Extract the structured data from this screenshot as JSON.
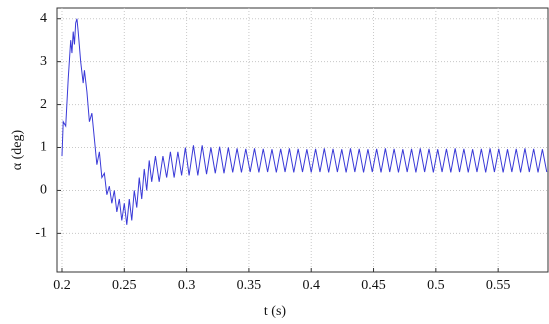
{
  "chart_data": {
    "type": "line",
    "xlabel": "t (s)",
    "ylabel": "α (deg)",
    "color": "#3a3ad8",
    "grid": true,
    "xlim": [
      0.196,
      0.59
    ],
    "ylim": [
      -1.9,
      4.25
    ],
    "xticks": [
      0.2,
      0.25,
      0.3,
      0.35,
      0.4,
      0.45,
      0.5,
      0.55
    ],
    "yticks": [
      -1,
      0,
      1,
      2,
      3,
      4
    ],
    "x": [
      0.2,
      0.201,
      0.203,
      0.205,
      0.207,
      0.208,
      0.209,
      0.21,
      0.211,
      0.212,
      0.213,
      0.215,
      0.217,
      0.218,
      0.22,
      0.222,
      0.224,
      0.226,
      0.228,
      0.23,
      0.232,
      0.234,
      0.236,
      0.238,
      0.24,
      0.242,
      0.244,
      0.246,
      0.248,
      0.25,
      0.252,
      0.254,
      0.256,
      0.258,
      0.26,
      0.262,
      0.264,
      0.266,
      0.268,
      0.27,
      0.272,
      0.275,
      0.278,
      0.281,
      0.284,
      0.287,
      0.29,
      0.293,
      0.296,
      0.299,
      0.302,
      0.3055,
      0.309,
      0.3125,
      0.316,
      0.3195,
      0.323,
      0.3265,
      0.33,
      0.3335,
      0.337,
      0.3405,
      0.344,
      0.3475,
      0.351,
      0.3545,
      0.358,
      0.3615,
      0.365,
      0.3685,
      0.372,
      0.3755,
      0.379,
      0.3825,
      0.386,
      0.3895,
      0.393,
      0.3965,
      0.4,
      0.4035,
      0.407,
      0.4105,
      0.414,
      0.4175,
      0.421,
      0.4245,
      0.428,
      0.4315,
      0.435,
      0.4385,
      0.442,
      0.4455,
      0.449,
      0.4525,
      0.456,
      0.4595,
      0.463,
      0.4665,
      0.47,
      0.4735,
      0.477,
      0.4805,
      0.484,
      0.4875,
      0.491,
      0.4945,
      0.498,
      0.5015,
      0.505,
      0.5085,
      0.512,
      0.5155,
      0.519,
      0.5225,
      0.526,
      0.5295,
      0.533,
      0.5365,
      0.54,
      0.5435,
      0.547,
      0.5505,
      0.554,
      0.5575,
      0.561,
      0.5645,
      0.568,
      0.5715,
      0.575,
      0.5785,
      0.582,
      0.5855,
      0.589
    ],
    "values": [
      0.8,
      1.6,
      1.5,
      2.6,
      3.5,
      3.2,
      3.7,
      3.4,
      3.9,
      4.0,
      3.7,
      3.0,
      2.5,
      2.8,
      2.3,
      1.6,
      1.8,
      1.2,
      0.6,
      0.9,
      0.3,
      0.4,
      -0.1,
      0.1,
      -0.3,
      0.0,
      -0.5,
      -0.2,
      -0.7,
      -0.3,
      -0.8,
      -0.2,
      -0.7,
      0.0,
      -0.4,
      0.3,
      -0.2,
      0.5,
      0.0,
      0.7,
      0.2,
      0.8,
      0.2,
      0.8,
      0.3,
      0.9,
      0.3,
      0.9,
      0.35,
      1.0,
      0.35,
      1.05,
      0.35,
      1.05,
      0.38,
      1.0,
      0.4,
      1.02,
      0.4,
      1.0,
      0.42,
      0.98,
      0.42,
      0.97,
      0.43,
      0.98,
      0.42,
      0.97,
      0.43,
      0.96,
      0.42,
      0.97,
      0.43,
      0.98,
      0.42,
      0.97,
      0.43,
      0.96,
      0.42,
      0.97,
      0.43,
      0.98,
      0.42,
      0.97,
      0.43,
      0.96,
      0.42,
      0.98,
      0.43,
      0.97,
      0.42,
      0.96,
      0.43,
      0.97,
      0.42,
      0.98,
      0.43,
      0.97,
      0.42,
      0.96,
      0.43,
      0.97,
      0.42,
      0.98,
      0.43,
      0.97,
      0.42,
      0.96,
      0.43,
      0.97,
      0.42,
      0.98,
      0.43,
      0.97,
      0.42,
      0.96,
      0.43,
      0.97,
      0.42,
      0.98,
      0.43,
      0.97,
      0.42,
      0.96,
      0.43,
      0.97,
      0.42,
      0.98,
      0.43,
      0.97,
      0.42,
      0.96,
      0.43
    ]
  }
}
